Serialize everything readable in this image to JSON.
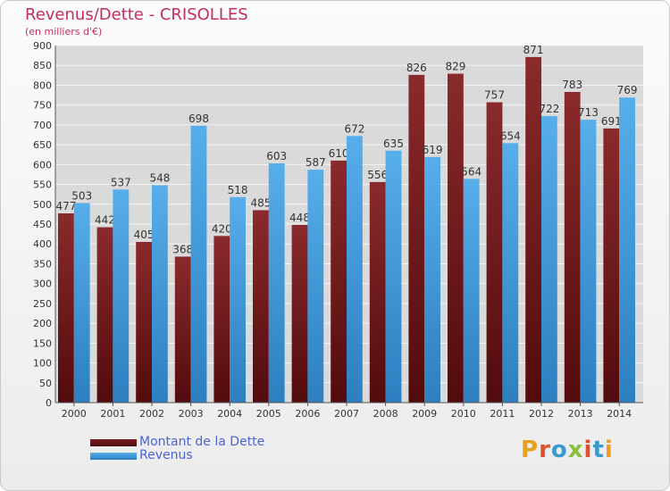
{
  "header": {
    "title": "Revenus/Dette - CRISOLLES",
    "subtitle": "(en milliers d'€)"
  },
  "brand": {
    "text": "Proxiti",
    "colors": [
      "#e8a020",
      "#e05030",
      "#3a9ad0",
      "#8ac040",
      "#e05030",
      "#3a9ad0",
      "#e8a020"
    ]
  },
  "chart_data": {
    "type": "bar",
    "categories": [
      "2000",
      "2001",
      "2002",
      "2003",
      "2004",
      "2005",
      "2006",
      "2007",
      "2008",
      "2009",
      "2010",
      "2011",
      "2012",
      "2013",
      "2014"
    ],
    "series": [
      {
        "name": "Montant de la Dette",
        "color": "#7a1f22",
        "values": [
          477,
          442,
          405,
          368,
          420,
          485,
          448,
          610,
          556,
          826,
          829,
          757,
          871,
          783,
          691
        ]
      },
      {
        "name": "Revenus",
        "color": "#4aa3e6",
        "values": [
          503,
          537,
          548,
          698,
          518,
          603,
          587,
          672,
          635,
          619,
          564,
          654,
          722,
          713,
          769
        ]
      }
    ],
    "ylim": [
      0,
      900
    ],
    "yticks": [
      0,
      50,
      100,
      150,
      200,
      250,
      300,
      350,
      400,
      450,
      500,
      550,
      600,
      650,
      700,
      750,
      800,
      850,
      900
    ],
    "grid": true,
    "legend": "bottom-left"
  }
}
